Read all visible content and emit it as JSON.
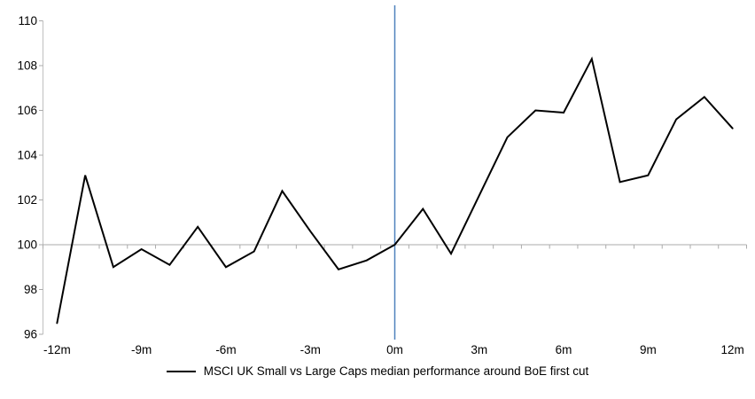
{
  "chart_data": {
    "type": "line",
    "title": "",
    "xlabel": "",
    "ylabel": "",
    "x_months": [
      -12,
      -11,
      -10,
      -9,
      -8,
      -7,
      -6,
      -5,
      -4,
      -3,
      -2,
      -1,
      0,
      1,
      2,
      3,
      4,
      5,
      6,
      7,
      8,
      9,
      10,
      11,
      12
    ],
    "series": [
      {
        "name": "MSCI UK Small vs Large Caps median performance around BoE first cut",
        "values": [
          96.5,
          103.1,
          99.0,
          99.8,
          99.1,
          100.8,
          99.0,
          99.7,
          102.4,
          100.6,
          98.9,
          99.3,
          100.0,
          101.6,
          99.6,
          102.2,
          104.8,
          106.0,
          105.9,
          108.3,
          102.8,
          103.1,
          105.6,
          106.6,
          105.2
        ]
      }
    ],
    "x_tick_months": [
      -12,
      -9,
      -6,
      -3,
      0,
      3,
      6,
      9,
      12
    ],
    "x_tick_labels": [
      "-12m",
      "-9m",
      "-6m",
      "-3m",
      "0m",
      "3m",
      "6m",
      "9m",
      "12m"
    ],
    "y_ticks": [
      96,
      98,
      100,
      102,
      104,
      106,
      108,
      110
    ],
    "ylim": [
      96,
      110
    ],
    "baseline_value": 100,
    "event_line_month": 0,
    "grid": "off",
    "legend_position": "bottom",
    "colors": {
      "series_line": "#000000",
      "event_line": "#4F81BD",
      "category_axis": "#ABABAB",
      "value_axis": "#BFBFBF",
      "tick": "#ABABAB",
      "label": "#000000"
    }
  }
}
